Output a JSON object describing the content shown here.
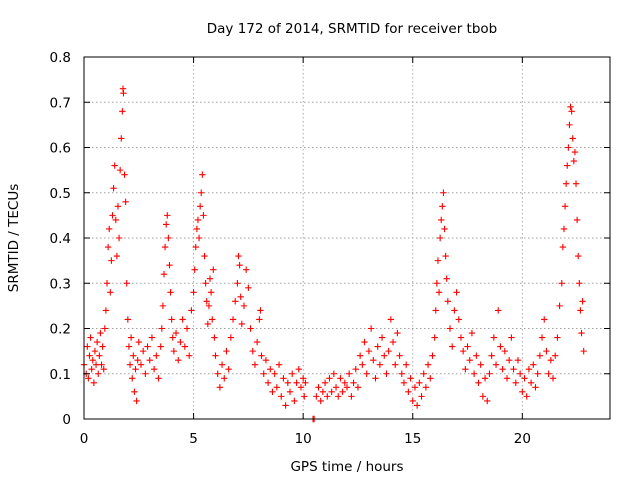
{
  "chart_data": {
    "type": "scatter",
    "title": "Day 172 of 2014, SRMTID for receiver tbob",
    "xlabel": "GPS time / hours",
    "ylabel": "SRMTID / TECUs",
    "xlim": [
      0,
      24
    ],
    "ylim": [
      0,
      0.8
    ],
    "xticks": [
      0,
      5,
      10,
      15,
      20
    ],
    "yticks": [
      0,
      0.1,
      0.2,
      0.3,
      0.4,
      0.5,
      0.6,
      0.7,
      0.8
    ],
    "xtick_labels": [
      "0",
      "5",
      "10",
      "15",
      "20"
    ],
    "ytick_labels": [
      "0",
      "0.1",
      "0.2",
      "0.3",
      "0.4",
      "0.5",
      "0.6",
      "0.7",
      "0.8"
    ],
    "grid": true,
    "marker": "+",
    "color": "#ff0000",
    "series": [
      {
        "name": "tbob",
        "points": [
          [
            0.0,
            0.12
          ],
          [
            0.1,
            0.1
          ],
          [
            0.15,
            0.16
          ],
          [
            0.2,
            0.09
          ],
          [
            0.25,
            0.14
          ],
          [
            0.3,
            0.18
          ],
          [
            0.35,
            0.11
          ],
          [
            0.4,
            0.13
          ],
          [
            0.45,
            0.08
          ],
          [
            0.5,
            0.15
          ],
          [
            0.55,
            0.12
          ],
          [
            0.6,
            0.17
          ],
          [
            0.65,
            0.1
          ],
          [
            0.7,
            0.14
          ],
          [
            0.75,
            0.19
          ],
          [
            0.8,
            0.12
          ],
          [
            0.85,
            0.16
          ],
          [
            0.9,
            0.11
          ],
          [
            0.95,
            0.2
          ],
          [
            1.0,
            0.24
          ],
          [
            1.05,
            0.3
          ],
          [
            1.1,
            0.38
          ],
          [
            1.15,
            0.42
          ],
          [
            1.2,
            0.28
          ],
          [
            1.25,
            0.35
          ],
          [
            1.3,
            0.45
          ],
          [
            1.35,
            0.51
          ],
          [
            1.4,
            0.56
          ],
          [
            1.45,
            0.44
          ],
          [
            1.5,
            0.36
          ],
          [
            1.55,
            0.47
          ],
          [
            1.6,
            0.4
          ],
          [
            1.65,
            0.55
          ],
          [
            1.7,
            0.62
          ],
          [
            1.75,
            0.68
          ],
          [
            1.78,
            0.73
          ],
          [
            1.8,
            0.72
          ],
          [
            1.85,
            0.54
          ],
          [
            1.9,
            0.48
          ],
          [
            1.95,
            0.3
          ],
          [
            2.0,
            0.22
          ],
          [
            2.05,
            0.16
          ],
          [
            2.1,
            0.12
          ],
          [
            2.15,
            0.18
          ],
          [
            2.2,
            0.09
          ],
          [
            2.25,
            0.14
          ],
          [
            2.3,
            0.06
          ],
          [
            2.35,
            0.11
          ],
          [
            2.4,
            0.04
          ],
          [
            2.45,
            0.13
          ],
          [
            2.5,
            0.17
          ],
          [
            2.6,
            0.12
          ],
          [
            2.7,
            0.15
          ],
          [
            2.8,
            0.1
          ],
          [
            2.9,
            0.16
          ],
          [
            3.0,
            0.13
          ],
          [
            3.1,
            0.18
          ],
          [
            3.2,
            0.11
          ],
          [
            3.3,
            0.14
          ],
          [
            3.4,
            0.09
          ],
          [
            3.5,
            0.16
          ],
          [
            3.55,
            0.2
          ],
          [
            3.6,
            0.25
          ],
          [
            3.65,
            0.32
          ],
          [
            3.7,
            0.38
          ],
          [
            3.75,
            0.43
          ],
          [
            3.8,
            0.45
          ],
          [
            3.85,
            0.4
          ],
          [
            3.9,
            0.34
          ],
          [
            3.95,
            0.28
          ],
          [
            4.0,
            0.22
          ],
          [
            4.05,
            0.18
          ],
          [
            4.1,
            0.15
          ],
          [
            4.2,
            0.19
          ],
          [
            4.3,
            0.13
          ],
          [
            4.4,
            0.17
          ],
          [
            4.5,
            0.22
          ],
          [
            4.6,
            0.16
          ],
          [
            4.7,
            0.2
          ],
          [
            4.8,
            0.14
          ],
          [
            4.9,
            0.24
          ],
          [
            5.0,
            0.28
          ],
          [
            5.05,
            0.33
          ],
          [
            5.1,
            0.38
          ],
          [
            5.15,
            0.42
          ],
          [
            5.2,
            0.44
          ],
          [
            5.25,
            0.4
          ],
          [
            5.3,
            0.47
          ],
          [
            5.35,
            0.5
          ],
          [
            5.4,
            0.54
          ],
          [
            5.45,
            0.45
          ],
          [
            5.5,
            0.36
          ],
          [
            5.55,
            0.3
          ],
          [
            5.6,
            0.26
          ],
          [
            5.65,
            0.21
          ],
          [
            5.7,
            0.25
          ],
          [
            5.75,
            0.31
          ],
          [
            5.8,
            0.28
          ],
          [
            5.85,
            0.22
          ],
          [
            5.9,
            0.33
          ],
          [
            5.95,
            0.18
          ],
          [
            6.0,
            0.14
          ],
          [
            6.1,
            0.1
          ],
          [
            6.2,
            0.07
          ],
          [
            6.3,
            0.12
          ],
          [
            6.4,
            0.09
          ],
          [
            6.5,
            0.15
          ],
          [
            6.6,
            0.11
          ],
          [
            6.7,
            0.18
          ],
          [
            6.8,
            0.22
          ],
          [
            6.9,
            0.26
          ],
          [
            7.0,
            0.3
          ],
          [
            7.05,
            0.36
          ],
          [
            7.1,
            0.34
          ],
          [
            7.15,
            0.27
          ],
          [
            7.2,
            0.21
          ],
          [
            7.3,
            0.25
          ],
          [
            7.4,
            0.33
          ],
          [
            7.5,
            0.29
          ],
          [
            7.6,
            0.2
          ],
          [
            7.7,
            0.15
          ],
          [
            7.8,
            0.12
          ],
          [
            7.9,
            0.17
          ],
          [
            8.0,
            0.22
          ],
          [
            8.05,
            0.24
          ],
          [
            8.1,
            0.14
          ],
          [
            8.2,
            0.1
          ],
          [
            8.3,
            0.13
          ],
          [
            8.4,
            0.08
          ],
          [
            8.5,
            0.11
          ],
          [
            8.6,
            0.06
          ],
          [
            8.7,
            0.1
          ],
          [
            8.8,
            0.07
          ],
          [
            8.9,
            0.12
          ],
          [
            9.0,
            0.05
          ],
          [
            9.1,
            0.09
          ],
          [
            9.2,
            0.03
          ],
          [
            9.3,
            0.08
          ],
          [
            9.4,
            0.06
          ],
          [
            9.5,
            0.1
          ],
          [
            9.6,
            0.04
          ],
          [
            9.7,
            0.08
          ],
          [
            9.8,
            0.11
          ],
          [
            9.9,
            0.07
          ],
          [
            10.0,
            0.09
          ],
          [
            10.05,
            0.05
          ],
          [
            10.1,
            0.08
          ],
          [
            10.45,
            0.0
          ],
          [
            10.5,
            0.0
          ],
          [
            10.6,
            0.05
          ],
          [
            10.7,
            0.07
          ],
          [
            10.8,
            0.04
          ],
          [
            10.9,
            0.06
          ],
          [
            11.0,
            0.08
          ],
          [
            11.1,
            0.05
          ],
          [
            11.2,
            0.09
          ],
          [
            11.3,
            0.06
          ],
          [
            11.4,
            0.1
          ],
          [
            11.5,
            0.07
          ],
          [
            11.6,
            0.05
          ],
          [
            11.7,
            0.09
          ],
          [
            11.8,
            0.06
          ],
          [
            11.9,
            0.08
          ],
          [
            12.0,
            0.07
          ],
          [
            12.1,
            0.1
          ],
          [
            12.2,
            0.05
          ],
          [
            12.3,
            0.08
          ],
          [
            12.4,
            0.11
          ],
          [
            12.5,
            0.07
          ],
          [
            12.6,
            0.14
          ],
          [
            12.7,
            0.12
          ],
          [
            12.8,
            0.17
          ],
          [
            12.9,
            0.1
          ],
          [
            13.0,
            0.15
          ],
          [
            13.1,
            0.2
          ],
          [
            13.2,
            0.13
          ],
          [
            13.3,
            0.09
          ],
          [
            13.4,
            0.16
          ],
          [
            13.5,
            0.12
          ],
          [
            13.6,
            0.18
          ],
          [
            13.7,
            0.14
          ],
          [
            13.8,
            0.1
          ],
          [
            13.9,
            0.15
          ],
          [
            14.0,
            0.22
          ],
          [
            14.1,
            0.17
          ],
          [
            14.2,
            0.12
          ],
          [
            14.3,
            0.19
          ],
          [
            14.4,
            0.14
          ],
          [
            14.5,
            0.1
          ],
          [
            14.6,
            0.08
          ],
          [
            14.7,
            0.12
          ],
          [
            14.8,
            0.06
          ],
          [
            14.9,
            0.09
          ],
          [
            15.0,
            0.04
          ],
          [
            15.1,
            0.07
          ],
          [
            15.2,
            0.03
          ],
          [
            15.3,
            0.08
          ],
          [
            15.4,
            0.05
          ],
          [
            15.5,
            0.1
          ],
          [
            15.6,
            0.07
          ],
          [
            15.7,
            0.12
          ],
          [
            15.8,
            0.09
          ],
          [
            15.9,
            0.14
          ],
          [
            16.0,
            0.18
          ],
          [
            16.05,
            0.24
          ],
          [
            16.1,
            0.3
          ],
          [
            16.15,
            0.35
          ],
          [
            16.2,
            0.28
          ],
          [
            16.25,
            0.4
          ],
          [
            16.3,
            0.44
          ],
          [
            16.35,
            0.47
          ],
          [
            16.4,
            0.5
          ],
          [
            16.45,
            0.42
          ],
          [
            16.5,
            0.36
          ],
          [
            16.55,
            0.31
          ],
          [
            16.6,
            0.26
          ],
          [
            16.7,
            0.2
          ],
          [
            16.8,
            0.16
          ],
          [
            16.9,
            0.24
          ],
          [
            17.0,
            0.28
          ],
          [
            17.1,
            0.22
          ],
          [
            17.2,
            0.18
          ],
          [
            17.3,
            0.15
          ],
          [
            17.4,
            0.11
          ],
          [
            17.5,
            0.16
          ],
          [
            17.6,
            0.13
          ],
          [
            17.7,
            0.19
          ],
          [
            17.8,
            0.1
          ],
          [
            17.9,
            0.14
          ],
          [
            18.0,
            0.08
          ],
          [
            18.1,
            0.12
          ],
          [
            18.2,
            0.05
          ],
          [
            18.3,
            0.09
          ],
          [
            18.4,
            0.04
          ],
          [
            18.5,
            0.1
          ],
          [
            18.6,
            0.14
          ],
          [
            18.7,
            0.18
          ],
          [
            18.8,
            0.12
          ],
          [
            18.9,
            0.24
          ],
          [
            19.0,
            0.16
          ],
          [
            19.1,
            0.11
          ],
          [
            19.2,
            0.15
          ],
          [
            19.3,
            0.09
          ],
          [
            19.4,
            0.13
          ],
          [
            19.5,
            0.18
          ],
          [
            19.6,
            0.11
          ],
          [
            19.7,
            0.08
          ],
          [
            19.8,
            0.13
          ],
          [
            19.9,
            0.1
          ],
          [
            20.0,
            0.06
          ],
          [
            20.1,
            0.09
          ],
          [
            20.2,
            0.05
          ],
          [
            20.3,
            0.11
          ],
          [
            20.4,
            0.08
          ],
          [
            20.5,
            0.12
          ],
          [
            20.6,
            0.07
          ],
          [
            20.7,
            0.1
          ],
          [
            20.8,
            0.14
          ],
          [
            20.9,
            0.18
          ],
          [
            21.0,
            0.22
          ],
          [
            21.1,
            0.15
          ],
          [
            21.2,
            0.1
          ],
          [
            21.3,
            0.13
          ],
          [
            21.4,
            0.09
          ],
          [
            21.5,
            0.14
          ],
          [
            21.6,
            0.18
          ],
          [
            21.7,
            0.25
          ],
          [
            21.8,
            0.3
          ],
          [
            21.85,
            0.38
          ],
          [
            21.9,
            0.42
          ],
          [
            21.95,
            0.47
          ],
          [
            22.0,
            0.52
          ],
          [
            22.05,
            0.56
          ],
          [
            22.1,
            0.6
          ],
          [
            22.15,
            0.65
          ],
          [
            22.2,
            0.69
          ],
          [
            22.25,
            0.68
          ],
          [
            22.3,
            0.62
          ],
          [
            22.35,
            0.57
          ],
          [
            22.4,
            0.59
          ],
          [
            22.45,
            0.52
          ],
          [
            22.5,
            0.44
          ],
          [
            22.55,
            0.36
          ],
          [
            22.6,
            0.3
          ],
          [
            22.65,
            0.24
          ],
          [
            22.7,
            0.19
          ],
          [
            22.75,
            0.26
          ],
          [
            22.8,
            0.15
          ]
        ]
      }
    ]
  }
}
